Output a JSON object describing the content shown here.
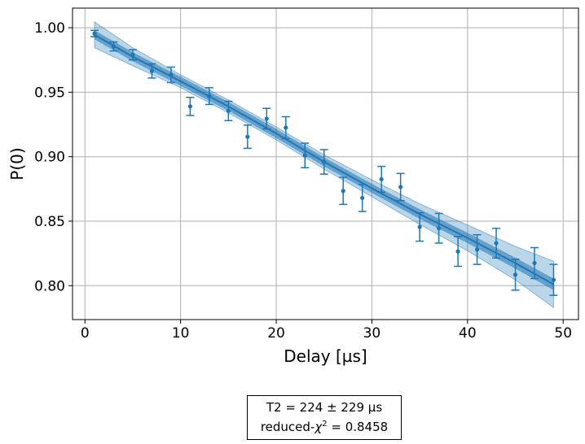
{
  "chart_data": {
    "type": "scatter",
    "xlabel": "Delay [µs]",
    "ylabel": "P(0)",
    "xlim": [
      -1.3,
      51.6
    ],
    "ylim": [
      0.7737,
      1.0152
    ],
    "x_ticks": [
      0,
      10,
      20,
      30,
      40,
      50
    ],
    "y_ticks": [
      0.8,
      0.85,
      0.9,
      0.95,
      1.0
    ],
    "x_tick_labels": [
      "0",
      "10",
      "20",
      "30",
      "40",
      "50"
    ],
    "y_tick_labels": [
      "0.80",
      "0.85",
      "0.90",
      "0.95",
      "1.00"
    ],
    "grid": true,
    "colors": {
      "data": "#1f77b4",
      "fit_line": "#1f77b4",
      "band": "#1f77b4"
    },
    "points": [
      {
        "x": 1,
        "y": 0.9955,
        "err": 0.0025
      },
      {
        "x": 3,
        "y": 0.9855,
        "err": 0.0035
      },
      {
        "x": 5,
        "y": 0.979,
        "err": 0.004
      },
      {
        "x": 7,
        "y": 0.9665,
        "err": 0.0055
      },
      {
        "x": 9,
        "y": 0.9635,
        "err": 0.006
      },
      {
        "x": 11,
        "y": 0.939,
        "err": 0.007
      },
      {
        "x": 13,
        "y": 0.947,
        "err": 0.0065
      },
      {
        "x": 15,
        "y": 0.9355,
        "err": 0.0075
      },
      {
        "x": 17,
        "y": 0.9155,
        "err": 0.009
      },
      {
        "x": 19,
        "y": 0.9295,
        "err": 0.008
      },
      {
        "x": 21,
        "y": 0.9225,
        "err": 0.0085
      },
      {
        "x": 23,
        "y": 0.901,
        "err": 0.0095
      },
      {
        "x": 25,
        "y": 0.896,
        "err": 0.0095
      },
      {
        "x": 27,
        "y": 0.8735,
        "err": 0.0105
      },
      {
        "x": 29,
        "y": 0.868,
        "err": 0.0105
      },
      {
        "x": 31,
        "y": 0.8825,
        "err": 0.01
      },
      {
        "x": 33,
        "y": 0.8765,
        "err": 0.0105
      },
      {
        "x": 35,
        "y": 0.8455,
        "err": 0.011
      },
      {
        "x": 37,
        "y": 0.8445,
        "err": 0.0115
      },
      {
        "x": 39,
        "y": 0.8265,
        "err": 0.0115
      },
      {
        "x": 41,
        "y": 0.828,
        "err": 0.0115
      },
      {
        "x": 43,
        "y": 0.833,
        "err": 0.0115
      },
      {
        "x": 45,
        "y": 0.8085,
        "err": 0.012
      },
      {
        "x": 47,
        "y": 0.8175,
        "err": 0.012
      },
      {
        "x": 49,
        "y": 0.8045,
        "err": 0.012
      }
    ],
    "fit": {
      "x": [
        1,
        5,
        10,
        15,
        20,
        25,
        30,
        35,
        40,
        45,
        49
      ],
      "y": [
        0.9945,
        0.9775,
        0.9585,
        0.939,
        0.918,
        0.896,
        0.8755,
        0.8555,
        0.837,
        0.8175,
        0.801
      ],
      "inner_band": [
        0.0035,
        0.0035,
        0.0035,
        0.0035,
        0.0035,
        0.0035,
        0.0035,
        0.0038,
        0.004,
        0.0042,
        0.0045
      ],
      "outer_band": [
        0.01,
        0.007,
        0.005,
        0.005,
        0.005,
        0.0055,
        0.0065,
        0.008,
        0.01,
        0.013,
        0.018
      ]
    }
  },
  "fit_box": {
    "line1": "T2 =   224 ±  229 µs",
    "line2_prefix": "reduced-",
    "line2_symbol": "χ",
    "line2_sup": "2",
    "line2_suffix": " =  0.8458"
  }
}
